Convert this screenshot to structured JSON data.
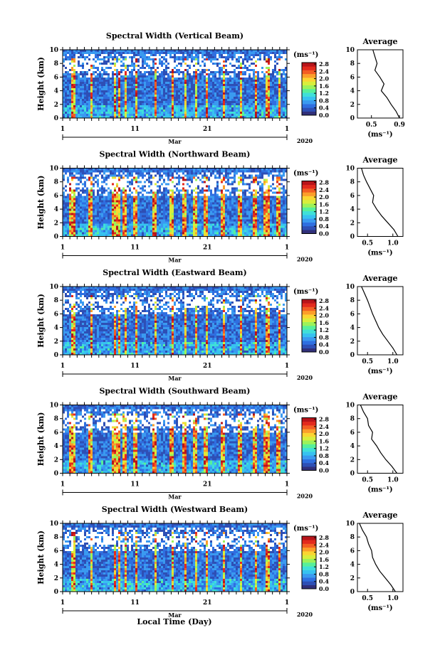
{
  "colors": {
    "colorbar": [
      "#31307a",
      "#2e4fb5",
      "#2f6fe0",
      "#3a9af0",
      "#37c2f0",
      "#3fe0d8",
      "#57f09a",
      "#9cf25a",
      "#d8ee3c",
      "#fbd531",
      "#fc9e2a",
      "#f35e23",
      "#e32a1d",
      "#b8141a"
    ],
    "background": "#3b5ecf"
  },
  "panels": [
    {
      "title": "Spectral Width (Vertical Beam)",
      "avg_xticks": [
        "0.5",
        "0.9"
      ]
    },
    {
      "title": "Spectral Width (Northward Beam)",
      "avg_xticks": [
        "0.5",
        "1.0"
      ]
    },
    {
      "title": "Spectral Width (Eastward Beam)",
      "avg_xticks": [
        "0.5",
        "1.0"
      ]
    },
    {
      "title": "Spectral Width (Southward Beam)",
      "avg_xticks": [
        "0.5",
        "1.0"
      ]
    },
    {
      "title": "Spectral Width (Westward Beam)",
      "avg_xticks": [
        "0.5",
        "1.0"
      ]
    }
  ],
  "common": {
    "ylabel": "Height (km)",
    "yticks": [
      "0",
      "2",
      "4",
      "6",
      "8",
      "10"
    ],
    "xticks": [
      "1",
      "11",
      "21",
      "1"
    ],
    "month": "Mar",
    "year": "2020",
    "unit": "(ms⁻¹)",
    "cbar_ticks": [
      "0.0",
      "0.4",
      "0.8",
      "1.2",
      "1.6",
      "2.0",
      "2.4",
      "2.8"
    ],
    "avg_title": "Average",
    "avg_xlabel": "(ms⁻¹)",
    "xlabel": "Local Time (Day)"
  },
  "chart_data": [
    {
      "type": "heatmap",
      "title": "Spectral Width (Vertical Beam)",
      "ylabel": "Height (km)",
      "ylim": [
        0,
        10
      ],
      "xlim_days": [
        1,
        32
      ],
      "x_ticks": [
        "1",
        "11",
        "21",
        "1"
      ],
      "colorbar_range": [
        0.0,
        2.8
      ],
      "colorbar_unit": "ms-1"
    },
    {
      "type": "line",
      "title": "Average",
      "xlabel": "(ms-1)",
      "xlim": [
        0.3,
        0.95
      ],
      "ylim": [
        0,
        10
      ],
      "x": [
        0.52,
        0.55,
        0.58,
        0.55,
        0.62,
        0.68,
        0.64,
        0.72,
        0.78,
        0.85,
        0.9
      ],
      "y": [
        10,
        9,
        8,
        7,
        6,
        5,
        4,
        3,
        2,
        1,
        0
      ]
    },
    {
      "type": "heatmap",
      "title": "Spectral Width (Northward Beam)",
      "ylabel": "Height (km)",
      "ylim": [
        0,
        10
      ],
      "xlim_days": [
        1,
        32
      ],
      "x_ticks": [
        "1",
        "11",
        "21",
        "1"
      ],
      "colorbar_range": [
        0.0,
        2.8
      ],
      "colorbar_unit": "ms-1"
    },
    {
      "type": "line",
      "title": "Average",
      "xlabel": "(ms-1)",
      "xlim": [
        0.3,
        1.2
      ],
      "ylim": [
        0,
        10
      ],
      "x": [
        0.38,
        0.42,
        0.48,
        0.55,
        0.62,
        0.6,
        0.68,
        0.78,
        0.9,
        1.02,
        1.1
      ],
      "y": [
        10,
        9,
        8,
        7,
        6,
        5,
        4,
        3,
        2,
        1,
        0
      ]
    },
    {
      "type": "heatmap",
      "title": "Spectral Width (Eastward Beam)",
      "ylabel": "Height (km)",
      "ylim": [
        0,
        10
      ],
      "xlim_days": [
        1,
        32
      ],
      "x_ticks": [
        "1",
        "11",
        "21",
        "1"
      ],
      "colorbar_range": [
        0.0,
        2.8
      ],
      "colorbar_unit": "ms-1"
    },
    {
      "type": "line",
      "title": "Average",
      "xlabel": "(ms-1)",
      "xlim": [
        0.3,
        1.2
      ],
      "ylim": [
        0,
        10
      ],
      "x": [
        0.38,
        0.44,
        0.5,
        0.55,
        0.6,
        0.66,
        0.72,
        0.8,
        0.9,
        1.0,
        1.08
      ],
      "y": [
        10,
        9,
        8,
        7,
        6,
        5,
        4,
        3,
        2,
        1,
        0
      ]
    },
    {
      "type": "heatmap",
      "title": "Spectral Width (Southward Beam)",
      "ylabel": "Height (km)",
      "ylim": [
        0,
        10
      ],
      "xlim_days": [
        1,
        32
      ],
      "x_ticks": [
        "1",
        "11",
        "21",
        "1"
      ],
      "colorbar_range": [
        0.0,
        2.8
      ],
      "colorbar_unit": "ms-1"
    },
    {
      "type": "line",
      "title": "Average",
      "xlabel": "(ms-1)",
      "xlim": [
        0.3,
        1.2
      ],
      "ylim": [
        0,
        10
      ],
      "x": [
        0.36,
        0.42,
        0.5,
        0.52,
        0.6,
        0.58,
        0.68,
        0.76,
        0.86,
        0.98,
        1.08
      ],
      "y": [
        10,
        9,
        8,
        7,
        6,
        5,
        4,
        3,
        2,
        1,
        0
      ]
    },
    {
      "type": "heatmap",
      "title": "Spectral Width (Westward Beam)",
      "ylabel": "Height (km)",
      "ylim": [
        0,
        10
      ],
      "xlim_days": [
        1,
        32
      ],
      "x_ticks": [
        "1",
        "11",
        "21",
        "1"
      ],
      "colorbar_range": [
        0.0,
        2.8
      ],
      "colorbar_unit": "ms-1"
    },
    {
      "type": "line",
      "title": "Average",
      "xlabel": "(ms-1)",
      "xlim": [
        0.3,
        1.2
      ],
      "ylim": [
        0,
        10
      ],
      "x": [
        0.34,
        0.4,
        0.48,
        0.52,
        0.58,
        0.6,
        0.66,
        0.74,
        0.85,
        0.96,
        1.05
      ],
      "y": [
        10,
        9,
        8,
        7,
        6,
        5,
        4,
        3,
        2,
        1,
        0
      ]
    }
  ]
}
